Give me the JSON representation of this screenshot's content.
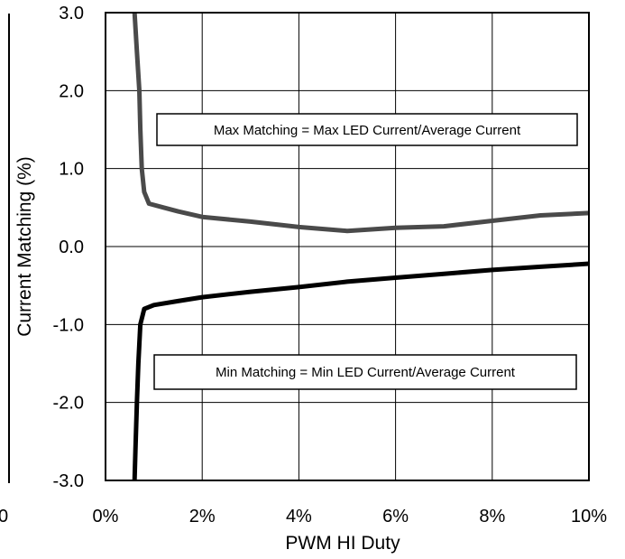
{
  "chart_data": {
    "type": "line",
    "title": "",
    "xlabel": "PWM HI Duty",
    "ylabel": "Current Matching (%)",
    "xlim": [
      0,
      10
    ],
    "ylim": [
      -3,
      3
    ],
    "x_tick_values": [
      0,
      2,
      4,
      6,
      8,
      10
    ],
    "x_ticks": [
      "0%",
      "2%",
      "4%",
      "6%",
      "8%",
      "10%"
    ],
    "y_tick_values": [
      3,
      2,
      1,
      0,
      -1,
      -2,
      -3
    ],
    "y_ticks": [
      "3.0",
      "2.0",
      "1.0",
      "0.0",
      "-1.0",
      "-2.0",
      "-3.0"
    ],
    "grid": true,
    "clipped_left_label": "0",
    "series": [
      {
        "color": "#4a4a4a",
        "x": [
          0.6,
          0.65,
          0.7,
          0.72,
          0.75,
          0.8,
          0.9,
          1.2,
          1.5,
          2.0,
          3.0,
          4.0,
          5.0,
          6.0,
          7.0,
          8.0,
          9.0,
          10.0
        ],
        "y": [
          3.0,
          2.5,
          2.0,
          1.5,
          1.0,
          0.7,
          0.55,
          0.5,
          0.45,
          0.38,
          0.32,
          0.25,
          0.2,
          0.24,
          0.26,
          0.33,
          0.4,
          0.43
        ]
      },
      {
        "color": "#000000",
        "x": [
          0.6,
          0.62,
          0.65,
          0.68,
          0.72,
          0.8,
          1.0,
          1.5,
          2.0,
          3.0,
          4.0,
          5.0,
          6.0,
          7.0,
          8.0,
          9.0,
          10.0
        ],
        "y": [
          -3.0,
          -2.6,
          -2.0,
          -1.5,
          -1.0,
          -0.8,
          -0.75,
          -0.7,
          -0.65,
          -0.58,
          -0.52,
          -0.45,
          -0.4,
          -0.35,
          -0.3,
          -0.26,
          -0.22
        ]
      }
    ],
    "annotations": [
      {
        "text": "Max Matching = Max LED Current/Average Current",
        "x": 4.8,
        "y": 1.48
      },
      {
        "text": "Min Matching = Min LED Current/Average Current",
        "x": 4.8,
        "y": -1.63
      }
    ]
  }
}
